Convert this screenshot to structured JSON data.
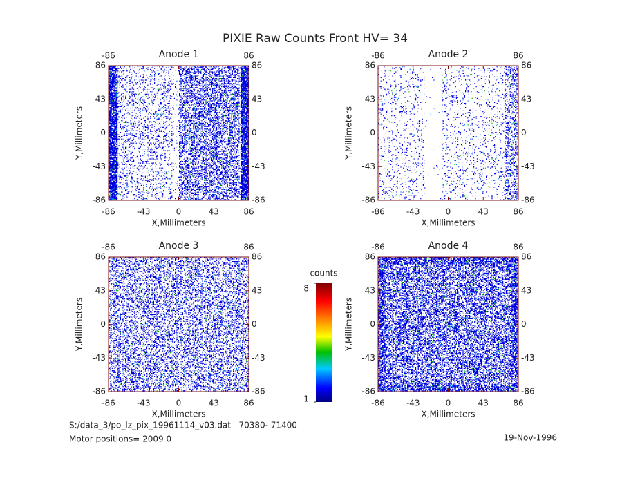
{
  "title": "PIXIE Raw Counts Front HV= 34",
  "chart_data": [
    {
      "type": "heatmap",
      "title": "Anode 1",
      "xlabel": "X,Millimeters",
      "ylabel": "Y,Millimeters",
      "xlim": [
        -86,
        86
      ],
      "ylim": [
        -86,
        86
      ],
      "xticks": [
        -86,
        -43,
        0,
        43,
        86
      ],
      "yticks": [
        -86,
        -43,
        0,
        43,
        86
      ]
    },
    {
      "type": "heatmap",
      "title": "Anode 2",
      "xlabel": "X,Millimeters",
      "ylabel": "Y,Millimeters",
      "xlim": [
        -86,
        86
      ],
      "ylim": [
        -86,
        86
      ],
      "xticks": [
        -86,
        -43,
        0,
        43,
        86
      ],
      "yticks": [
        -86,
        -43,
        0,
        43,
        86
      ]
    },
    {
      "type": "heatmap",
      "title": "Anode 3",
      "xlabel": "X,Millimeters",
      "ylabel": "Y,Millimeters",
      "xlim": [
        -86,
        86
      ],
      "ylim": [
        -86,
        86
      ],
      "xticks": [
        -86,
        -43,
        0,
        43,
        86
      ],
      "yticks": [
        -86,
        -43,
        0,
        43,
        86
      ]
    },
    {
      "type": "heatmap",
      "title": "Anode 4",
      "xlabel": "X,Millimeters",
      "ylabel": "Y,Millimeters",
      "xlim": [
        -86,
        86
      ],
      "ylim": [
        -86,
        86
      ],
      "xticks": [
        -86,
        -43,
        0,
        43,
        86
      ],
      "yticks": [
        -86,
        -43,
        0,
        43,
        86
      ]
    }
  ],
  "colorbar": {
    "label": "counts",
    "lim": [
      1,
      8
    ],
    "ticks": [
      1,
      8
    ]
  },
  "footer": {
    "file": "S:/data_3/po_lz_pix_19961114_v03.dat   70380- 71400",
    "motor": "Motor positions= 2009 0",
    "date": "19-Nov-1996"
  }
}
